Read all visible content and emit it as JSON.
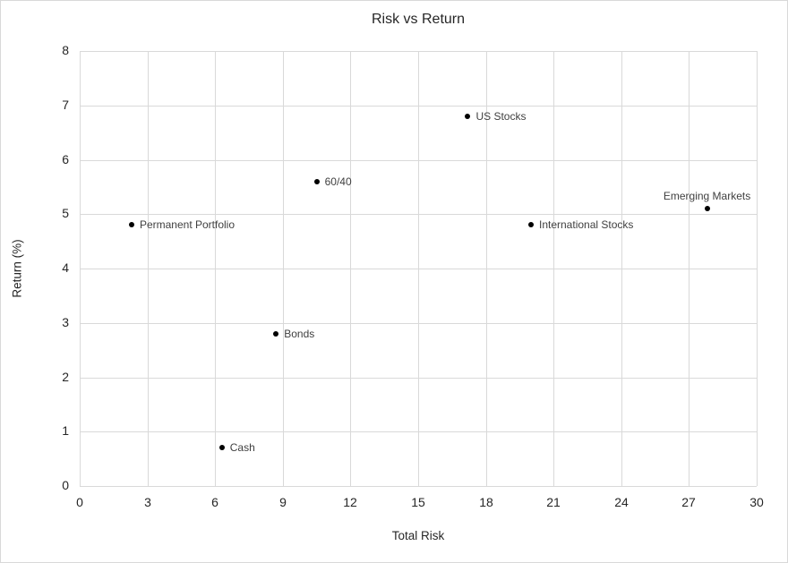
{
  "window": {
    "background": "#ffffff",
    "border_color": "#d9d9d9"
  },
  "chart_data": {
    "type": "scatter",
    "title": "Risk vs Return",
    "xlabel": "Total Risk",
    "ylabel": "Return (%)",
    "xlim": [
      0,
      30
    ],
    "xtick_step": 3,
    "xtick_labels": [
      "0",
      "3",
      "6",
      "9",
      "12",
      "15",
      "18",
      "21",
      "24",
      "27",
      "30"
    ],
    "ylim": [
      0,
      8
    ],
    "ytick_step": 1,
    "ytick_labels": [
      "0",
      "1",
      "2",
      "3",
      "4",
      "5",
      "6",
      "7",
      "8"
    ],
    "grid": true,
    "legend": "none",
    "gridline_color": "#d9d9d9",
    "marker_color": "#000000",
    "axis_text_color": "#262626",
    "point_label_color": "#404040",
    "points": [
      {
        "label": "Permanent Portfolio",
        "x": 2.3,
        "y": 4.8,
        "label_position": "right"
      },
      {
        "label": "Cash",
        "x": 6.3,
        "y": 0.7,
        "label_position": "right"
      },
      {
        "label": "Bonds",
        "x": 8.7,
        "y": 2.8,
        "label_position": "right"
      },
      {
        "label": "60/40",
        "x": 10.5,
        "y": 5.6,
        "label_position": "right"
      },
      {
        "label": "US Stocks",
        "x": 17.2,
        "y": 6.8,
        "label_position": "right"
      },
      {
        "label": "International Stocks",
        "x": 20.0,
        "y": 4.8,
        "label_position": "right"
      },
      {
        "label": "Emerging Markets",
        "x": 27.8,
        "y": 5.1,
        "label_position": "above"
      }
    ]
  }
}
